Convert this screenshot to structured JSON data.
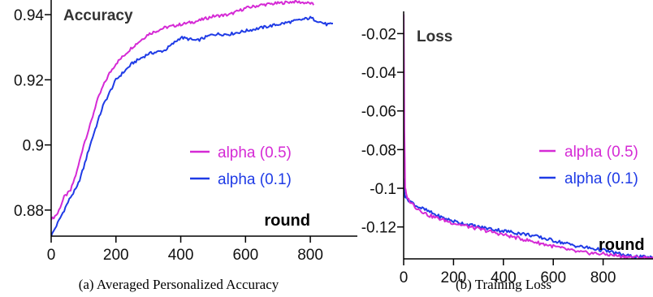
{
  "colors": {
    "series_a": "#d52ad5",
    "series_b": "#1f3be6",
    "axis": "#000000"
  },
  "captions": [
    "(a)  Averaged Personalized Accuracy",
    "(b)  Training Loss"
  ],
  "chart_data": [
    {
      "type": "line",
      "title": "Accuracy",
      "xlabel": "round",
      "ylabel": "",
      "xlim": [
        0,
        870
      ],
      "ylim": [
        0.872,
        0.9445
      ],
      "xticks": [
        "0",
        "200",
        "400",
        "600",
        "800"
      ],
      "xtick_values": [
        0,
        200,
        400,
        600,
        800
      ],
      "yticks": [
        "0.88",
        "0.9",
        "0.92",
        "0.94"
      ],
      "ytick_values": [
        0.88,
        0.9,
        0.92,
        0.94
      ],
      "legend_position": "right",
      "series": [
        {
          "name": "alpha (0.5)",
          "color": "#d52ad5",
          "x": [
            0,
            20,
            40,
            60,
            80,
            100,
            120,
            140,
            160,
            180,
            200,
            250,
            300,
            350,
            400,
            450,
            500,
            550,
            600,
            650,
            700,
            750,
            800,
            810
          ],
          "y": [
            0.877,
            0.879,
            0.884,
            0.886,
            0.892,
            0.9,
            0.906,
            0.913,
            0.918,
            0.922,
            0.925,
            0.93,
            0.934,
            0.936,
            0.937,
            0.938,
            0.9395,
            0.94,
            0.942,
            0.943,
            0.9435,
            0.944,
            0.9435,
            0.943
          ]
        },
        {
          "name": "alpha (0.1)",
          "color": "#1f3be6",
          "x": [
            0,
            20,
            40,
            60,
            80,
            100,
            120,
            140,
            160,
            180,
            200,
            250,
            300,
            350,
            400,
            450,
            500,
            550,
            600,
            650,
            700,
            750,
            800,
            850,
            870
          ],
          "y": [
            0.872,
            0.876,
            0.88,
            0.884,
            0.887,
            0.893,
            0.9,
            0.906,
            0.912,
            0.916,
            0.92,
            0.925,
            0.928,
            0.929,
            0.933,
            0.932,
            0.934,
            0.934,
            0.935,
            0.936,
            0.937,
            0.938,
            0.939,
            0.937,
            0.937
          ]
        }
      ]
    },
    {
      "type": "line",
      "title": "Loss",
      "xlabel": "round",
      "ylabel": "",
      "xlim": [
        0,
        1000
      ],
      "ylim": [
        -0.1365,
        -0.0085
      ],
      "xticks": [
        "0",
        "200",
        "400",
        "600",
        "800"
      ],
      "xtick_values": [
        0,
        200,
        400,
        600,
        800
      ],
      "yticks": [
        "-0.02",
        "-0.04",
        "-0.06",
        "-0.08",
        "-0.1",
        "-0.12"
      ],
      "ytick_values": [
        -0.02,
        -0.04,
        -0.06,
        -0.08,
        -0.1,
        -0.12
      ],
      "legend_position": "right",
      "series": [
        {
          "name": "alpha (0.5)",
          "color": "#d52ad5",
          "x": [
            0,
            3,
            6,
            10,
            20,
            50,
            100,
            150,
            200,
            300,
            400,
            500,
            600,
            700,
            800,
            900,
            1000
          ],
          "y": [
            -0.01,
            -0.07,
            -0.1,
            -0.103,
            -0.106,
            -0.11,
            -0.114,
            -0.116,
            -0.118,
            -0.121,
            -0.124,
            -0.127,
            -0.13,
            -0.133,
            -0.134,
            -0.1355,
            -0.136
          ]
        },
        {
          "name": "alpha (0.1)",
          "color": "#1f3be6",
          "x": [
            0,
            3,
            6,
            10,
            20,
            50,
            100,
            150,
            200,
            300,
            400,
            500,
            600,
            700,
            800,
            900,
            1000
          ],
          "y": [
            -0.095,
            -0.102,
            -0.104,
            -0.105,
            -0.106,
            -0.109,
            -0.112,
            -0.115,
            -0.117,
            -0.12,
            -0.122,
            -0.124,
            -0.127,
            -0.13,
            -0.132,
            -0.135,
            -0.136
          ]
        }
      ]
    }
  ]
}
